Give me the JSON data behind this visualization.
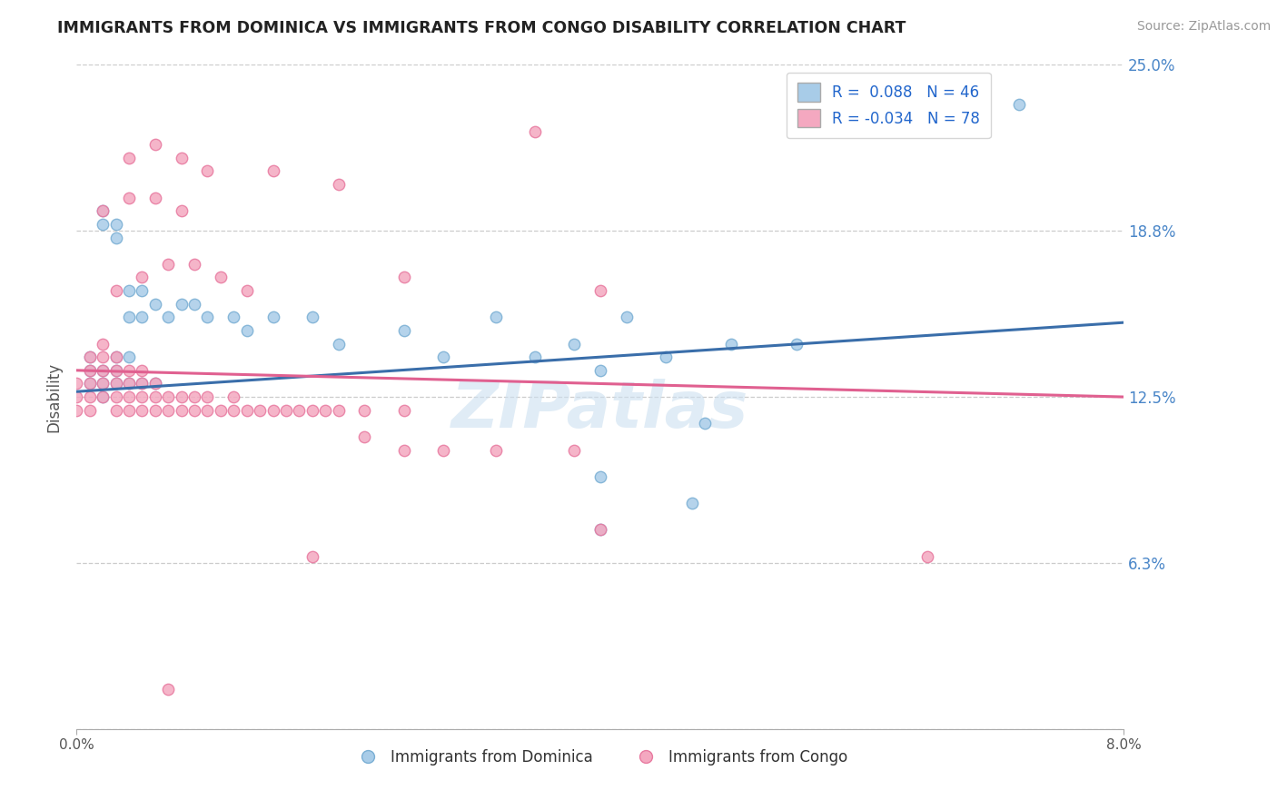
{
  "title": "IMMIGRANTS FROM DOMINICA VS IMMIGRANTS FROM CONGO DISABILITY CORRELATION CHART",
  "source": "Source: ZipAtlas.com",
  "ylabel": "Disability",
  "xmin": 0.0,
  "xmax": 0.08,
  "ymin": 0.0,
  "ymax": 0.25,
  "yticks": [
    0.0,
    0.0625,
    0.125,
    0.1875,
    0.25
  ],
  "ytick_labels": [
    "",
    "6.3%",
    "12.5%",
    "18.8%",
    "25.0%"
  ],
  "xticks": [
    0.0,
    0.08
  ],
  "xtick_labels": [
    "0.0%",
    "8.0%"
  ],
  "legend1_r": "0.088",
  "legend1_n": "46",
  "legend2_r": "-0.034",
  "legend2_n": "78",
  "legend_bottom_label1": "Immigrants from Dominica",
  "legend_bottom_label2": "Immigrants from Congo",
  "blue_color": "#a8cce8",
  "pink_color": "#f4a8c0",
  "blue_edge_color": "#7aafd4",
  "pink_edge_color": "#e87aa0",
  "blue_line_color": "#3a6eaa",
  "pink_line_color": "#e06090",
  "watermark_color": "#cce0f0",
  "blue_x": [
    0.001,
    0.001,
    0.001,
    0.002,
    0.002,
    0.002,
    0.002,
    0.002,
    0.003,
    0.003,
    0.003,
    0.003,
    0.003,
    0.004,
    0.004,
    0.004,
    0.004,
    0.005,
    0.005,
    0.005,
    0.006,
    0.006,
    0.007,
    0.008,
    0.009,
    0.01,
    0.012,
    0.013,
    0.015,
    0.018,
    0.02,
    0.025,
    0.028,
    0.032,
    0.035,
    0.038,
    0.04,
    0.042,
    0.045,
    0.05,
    0.04,
    0.055,
    0.047,
    0.04,
    0.072,
    0.048
  ],
  "blue_y": [
    0.13,
    0.135,
    0.14,
    0.125,
    0.13,
    0.135,
    0.19,
    0.195,
    0.13,
    0.135,
    0.14,
    0.185,
    0.19,
    0.13,
    0.14,
    0.155,
    0.165,
    0.13,
    0.155,
    0.165,
    0.13,
    0.16,
    0.155,
    0.16,
    0.16,
    0.155,
    0.155,
    0.15,
    0.155,
    0.155,
    0.145,
    0.15,
    0.14,
    0.155,
    0.14,
    0.145,
    0.135,
    0.155,
    0.14,
    0.145,
    0.095,
    0.145,
    0.085,
    0.075,
    0.235,
    0.115
  ],
  "pink_x": [
    0.0,
    0.0,
    0.0,
    0.001,
    0.001,
    0.001,
    0.001,
    0.001,
    0.002,
    0.002,
    0.002,
    0.002,
    0.002,
    0.003,
    0.003,
    0.003,
    0.003,
    0.003,
    0.004,
    0.004,
    0.004,
    0.004,
    0.005,
    0.005,
    0.005,
    0.005,
    0.006,
    0.006,
    0.006,
    0.007,
    0.007,
    0.008,
    0.008,
    0.009,
    0.009,
    0.01,
    0.01,
    0.011,
    0.012,
    0.012,
    0.013,
    0.014,
    0.015,
    0.016,
    0.017,
    0.018,
    0.019,
    0.02,
    0.022,
    0.025,
    0.003,
    0.005,
    0.007,
    0.009,
    0.011,
    0.013,
    0.002,
    0.004,
    0.006,
    0.008,
    0.004,
    0.006,
    0.008,
    0.01,
    0.015,
    0.02,
    0.025,
    0.035,
    0.04,
    0.022,
    0.025,
    0.028,
    0.032,
    0.038,
    0.018,
    0.065,
    0.04,
    0.007
  ],
  "pink_y": [
    0.12,
    0.125,
    0.13,
    0.12,
    0.125,
    0.13,
    0.135,
    0.14,
    0.125,
    0.13,
    0.135,
    0.14,
    0.145,
    0.12,
    0.125,
    0.13,
    0.135,
    0.14,
    0.12,
    0.125,
    0.13,
    0.135,
    0.12,
    0.125,
    0.13,
    0.135,
    0.12,
    0.125,
    0.13,
    0.12,
    0.125,
    0.12,
    0.125,
    0.12,
    0.125,
    0.12,
    0.125,
    0.12,
    0.12,
    0.125,
    0.12,
    0.12,
    0.12,
    0.12,
    0.12,
    0.12,
    0.12,
    0.12,
    0.12,
    0.12,
    0.165,
    0.17,
    0.175,
    0.175,
    0.17,
    0.165,
    0.195,
    0.2,
    0.2,
    0.195,
    0.215,
    0.22,
    0.215,
    0.21,
    0.21,
    0.205,
    0.17,
    0.225,
    0.165,
    0.11,
    0.105,
    0.105,
    0.105,
    0.105,
    0.065,
    0.065,
    0.075,
    0.015
  ]
}
